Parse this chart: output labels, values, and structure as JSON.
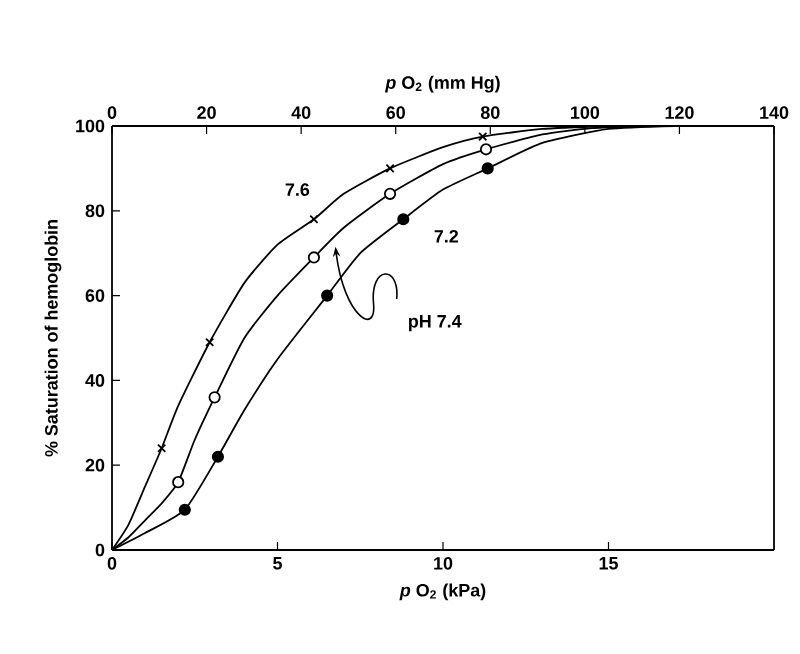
{
  "chart_data": {
    "type": "line",
    "xlabel": "*p* O$_{2}$ (kPa)",
    "x2label": "*p* O$_{2}$ (mm Hg)",
    "ylabel": "% Saturation of hemoglobin",
    "xlim": [
      0,
      20
    ],
    "xticks": [
      0,
      5,
      10,
      15
    ],
    "x2lim": [
      0,
      140
    ],
    "x2ticks": [
      0,
      20,
      40,
      60,
      80,
      100,
      120,
      140
    ],
    "ylim": [
      0,
      100
    ],
    "yticks": [
      0,
      20,
      40,
      60,
      80,
      100
    ],
    "grid": false,
    "annotations": [
      {
        "text": "7.6",
        "x": 5.0,
        "y": 72
      },
      {
        "text": "pH 7.4",
        "x": 6.6,
        "y": 72.5
      },
      {
        "text": "7.2",
        "x": 9.0,
        "y": 79
      }
    ],
    "series": [
      {
        "marker": "none",
        "color": "#000000",
        "x": [
          0,
          0.5,
          1,
          1.5,
          2,
          2.95,
          4,
          5,
          6.1,
          7,
          8.4,
          10,
          11.2,
          13,
          15
        ],
        "values": [
          0,
          6,
          15,
          24,
          34,
          49,
          63,
          72,
          78,
          84,
          90,
          95,
          97.5,
          99.3,
          100
        ]
      },
      {
        "marker": "none",
        "color": "#000000",
        "x": [
          0,
          0.5,
          1,
          1.5,
          2,
          2.5,
          3.1,
          4,
          5,
          6.1,
          7,
          8.4,
          10,
          11.3,
          13,
          14.5,
          16
        ],
        "values": [
          0,
          3,
          7,
          11,
          16,
          26,
          36,
          50,
          60,
          69,
          76,
          84,
          91,
          94.5,
          98,
          99.5,
          100
        ]
      },
      {
        "marker": "none",
        "color": "#000000",
        "x": [
          0,
          1,
          2.2,
          3.2,
          4,
          5,
          6.5,
          7.5,
          8.8,
          10,
          11.35,
          13,
          15,
          17
        ],
        "values": [
          0,
          4,
          9.5,
          22,
          33,
          45,
          60,
          70,
          78,
          85,
          90,
          96,
          99.3,
          100
        ]
      },
      {
        "type": "scatter",
        "marker": "cross",
        "color": "#000000",
        "x": [
          1.5,
          2.95,
          6.1,
          8.4,
          11.2
        ],
        "values": [
          24,
          49,
          78,
          90,
          97.5
        ]
      },
      {
        "type": "scatter",
        "marker": "circle",
        "color": "#ffffff",
        "x": [
          2,
          3.1,
          6.1,
          8.4,
          11.3
        ],
        "values": [
          16,
          36,
          69,
          84,
          94.5
        ]
      },
      {
        "type": "scatter",
        "marker": "circle",
        "color": "#000000",
        "x": [
          2.2,
          3.2,
          6.5,
          8.8,
          11.35
        ],
        "values": [
          9.5,
          22,
          60,
          78,
          90
        ]
      }
    ]
  }
}
